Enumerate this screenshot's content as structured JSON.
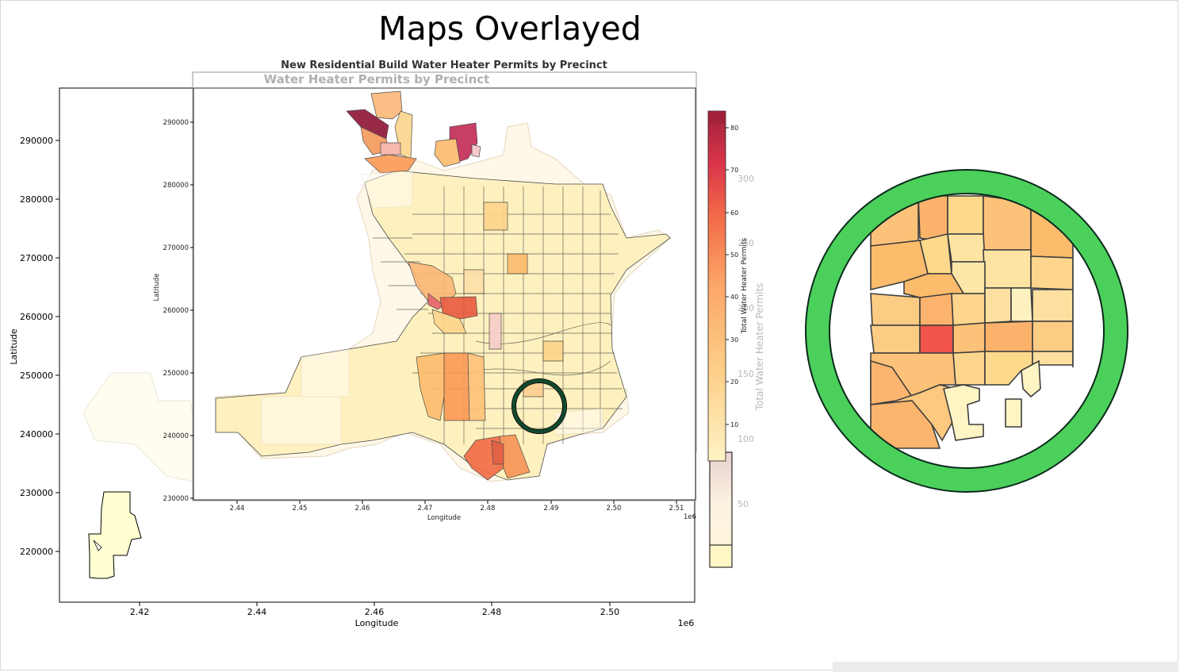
{
  "slide": {
    "title": "Maps Overlayed"
  },
  "colors": {
    "accent_ring": "#4cd05c",
    "highlight_ring": "#0d4a2c",
    "ramp": [
      "#fff9c8",
      "#fee9a6",
      "#fdd58c",
      "#fdbb6c",
      "#fb9a55",
      "#f47248",
      "#e34a3a",
      "#c42a3e",
      "#8f1434"
    ]
  },
  "back_map": {
    "x_ticks": [
      "2.42",
      "2.44",
      "2.46",
      "2.48",
      "2.50"
    ],
    "x_offset": "1e6",
    "y_ticks": [
      "290000",
      "280000",
      "270000",
      "260000",
      "250000",
      "240000",
      "230000",
      "220000"
    ],
    "xlabel": "Longitude",
    "ylabel": "Latitude",
    "colorbar_ticks": [
      "300",
      "250",
      "200",
      "150",
      "100",
      "50"
    ],
    "colorbar_label": "Total Water Heater Permits"
  },
  "ghost_title": "Water Heater Permits by Precinct",
  "front_map": {
    "title": "New Residential Build Water Heater Permits by Precinct",
    "x_ticks": [
      "2.44",
      "2.45",
      "2.46",
      "2.47",
      "2.48",
      "2.49",
      "2.50",
      "2.51"
    ],
    "x_offset": "1e6",
    "y_ticks": [
      "290000",
      "280000",
      "270000",
      "260000",
      "250000",
      "240000",
      "230000"
    ],
    "xlabel": "Longitude",
    "ylabel": "Latitude",
    "colorbar_ticks": [
      "80",
      "70",
      "60",
      "50",
      "40",
      "30",
      "20",
      "10"
    ],
    "colorbar_label": "Total Water Heater Permits"
  }
}
